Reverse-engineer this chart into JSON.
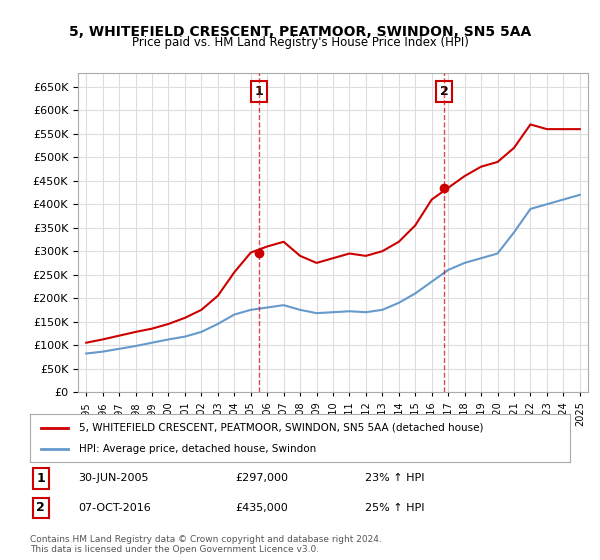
{
  "title": "5, WHITEFIELD CRESCENT, PEATMOOR, SWINDON, SN5 5AA",
  "subtitle": "Price paid vs. HM Land Registry's House Price Index (HPI)",
  "legend_line1": "5, WHITEFIELD CRESCENT, PEATMOOR, SWINDON, SN5 5AA (detached house)",
  "legend_line2": "HPI: Average price, detached house, Swindon",
  "annotation1_date": "30-JUN-2005",
  "annotation1_price": "£297,000",
  "annotation1_hpi": "23% ↑ HPI",
  "annotation2_date": "07-OCT-2016",
  "annotation2_price": "£435,000",
  "annotation2_hpi": "25% ↑ HPI",
  "footer": "Contains HM Land Registry data © Crown copyright and database right 2024.\nThis data is licensed under the Open Government Licence v3.0.",
  "vline1_x": 2005.5,
  "vline2_x": 2016.75,
  "sale1_x": 2005.5,
  "sale1_y": 297000,
  "sale2_x": 2016.75,
  "sale2_y": 435000,
  "red_color": "#cc0000",
  "blue_color": "#6699cc",
  "background_color": "#ffffff",
  "grid_color": "#dddddd",
  "ylim": [
    0,
    680000
  ],
  "xlim": [
    1994.5,
    2025.5
  ],
  "years": [
    1995,
    1996,
    1997,
    1998,
    1999,
    2000,
    2001,
    2002,
    2003,
    2004,
    2005,
    2006,
    2007,
    2008,
    2009,
    2010,
    2011,
    2012,
    2013,
    2014,
    2015,
    2016,
    2017,
    2018,
    2019,
    2020,
    2021,
    2022,
    2023,
    2024,
    2025
  ],
  "red_values": [
    105000,
    112000,
    120000,
    128000,
    135000,
    145000,
    158000,
    175000,
    205000,
    255000,
    297000,
    310000,
    320000,
    290000,
    275000,
    285000,
    295000,
    290000,
    300000,
    320000,
    355000,
    410000,
    435000,
    460000,
    480000,
    490000,
    520000,
    570000,
    560000,
    560000,
    560000
  ],
  "blue_values": [
    82000,
    86000,
    92000,
    98000,
    105000,
    112000,
    118000,
    128000,
    145000,
    165000,
    175000,
    180000,
    185000,
    175000,
    168000,
    170000,
    172000,
    170000,
    175000,
    190000,
    210000,
    235000,
    260000,
    275000,
    285000,
    295000,
    340000,
    390000,
    400000,
    410000,
    420000
  ]
}
